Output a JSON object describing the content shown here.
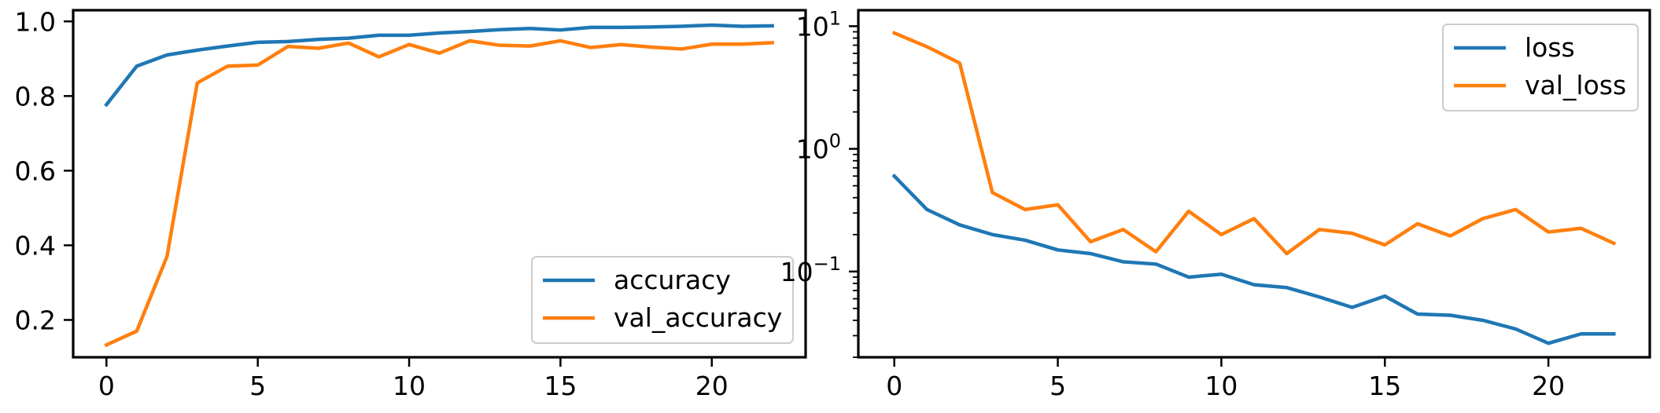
{
  "chart_data": [
    {
      "type": "line",
      "title": "",
      "xlabel": "",
      "ylabel": "",
      "xlim": [
        -1.1,
        23.1
      ],
      "ylim": [
        0.1,
        1.03
      ],
      "x_ticks": [
        0,
        5,
        10,
        15,
        20
      ],
      "x_tick_labels": [
        "0",
        "5",
        "10",
        "15",
        "20"
      ],
      "y_ticks": [
        0.2,
        0.4,
        0.6,
        0.8,
        1.0
      ],
      "y_tick_labels": [
        "0.2",
        "0.4",
        "0.6",
        "0.8",
        "1.0"
      ],
      "grid": false,
      "legend_position": "lower-right",
      "x": [
        0,
        1,
        2,
        3,
        4,
        5,
        6,
        7,
        8,
        9,
        10,
        11,
        12,
        13,
        14,
        15,
        16,
        17,
        18,
        19,
        20,
        21,
        22
      ],
      "series": [
        {
          "name": "accuracy",
          "color": "#1f77b4",
          "values": [
            0.777,
            0.88,
            0.91,
            0.923,
            0.934,
            0.944,
            0.946,
            0.952,
            0.955,
            0.963,
            0.963,
            0.969,
            0.973,
            0.978,
            0.981,
            0.977,
            0.984,
            0.984,
            0.985,
            0.987,
            0.99,
            0.987,
            0.988
          ]
        },
        {
          "name": "val_accuracy",
          "color": "#ff7f0e",
          "values": [
            0.133,
            0.17,
            0.37,
            0.835,
            0.88,
            0.883,
            0.933,
            0.928,
            0.942,
            0.905,
            0.938,
            0.915,
            0.948,
            0.936,
            0.934,
            0.948,
            0.93,
            0.938,
            0.931,
            0.926,
            0.939,
            0.939,
            0.943
          ]
        }
      ]
    },
    {
      "type": "line",
      "title": "",
      "xlabel": "",
      "ylabel": "",
      "yscale": "log",
      "xlim": [
        -1.1,
        23.1
      ],
      "ylim": [
        0.02,
        13.5
      ],
      "x_ticks": [
        0,
        5,
        10,
        15,
        20
      ],
      "x_tick_labels": [
        "0",
        "5",
        "10",
        "15",
        "20"
      ],
      "y_ticks": [
        0.1,
        1,
        10
      ],
      "y_tick_base": "10",
      "y_tick_exponents": [
        "−1",
        "0",
        "1"
      ],
      "grid": false,
      "legend_position": "upper-right",
      "x": [
        0,
        1,
        2,
        3,
        4,
        5,
        6,
        7,
        8,
        9,
        10,
        11,
        12,
        13,
        14,
        15,
        16,
        17,
        18,
        19,
        20,
        21,
        22
      ],
      "series": [
        {
          "name": "loss",
          "color": "#1f77b4",
          "values": [
            0.6,
            0.32,
            0.24,
            0.2,
            0.18,
            0.15,
            0.14,
            0.12,
            0.115,
            0.09,
            0.095,
            0.078,
            0.074,
            0.062,
            0.051,
            0.063,
            0.045,
            0.044,
            0.04,
            0.034,
            0.026,
            0.031,
            0.031
          ]
        },
        {
          "name": "val_loss",
          "color": "#ff7f0e",
          "values": [
            8.8,
            6.8,
            5.0,
            0.44,
            0.32,
            0.35,
            0.175,
            0.22,
            0.145,
            0.31,
            0.2,
            0.27,
            0.14,
            0.22,
            0.205,
            0.165,
            0.245,
            0.195,
            0.27,
            0.32,
            0.21,
            0.225,
            0.17
          ]
        }
      ]
    }
  ]
}
